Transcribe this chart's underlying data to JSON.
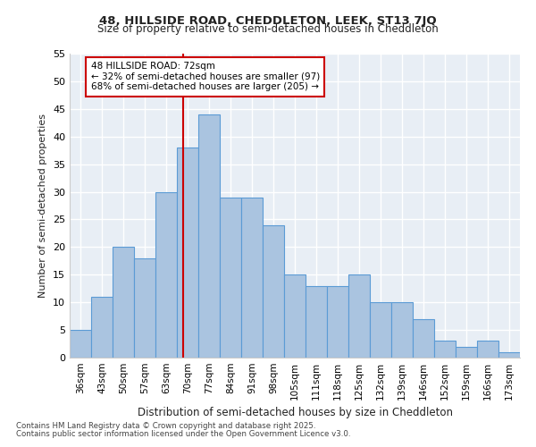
{
  "title1": "48, HILLSIDE ROAD, CHEDDLETON, LEEK, ST13 7JQ",
  "title2": "Size of property relative to semi-detached houses in Cheddleton",
  "xlabel": "Distribution of semi-detached houses by size in Cheddleton",
  "ylabel": "Number of semi-detached properties",
  "categories": [
    "36sqm",
    "43sqm",
    "50sqm",
    "57sqm",
    "63sqm",
    "70sqm",
    "77sqm",
    "84sqm",
    "91sqm",
    "98sqm",
    "105sqm",
    "111sqm",
    "118sqm",
    "125sqm",
    "132sqm",
    "139sqm",
    "146sqm",
    "152sqm",
    "159sqm",
    "166sqm",
    "173sqm"
  ],
  "values": [
    5,
    11,
    20,
    18,
    30,
    38,
    44,
    29,
    29,
    24,
    15,
    13,
    13,
    15,
    10,
    10,
    7,
    3,
    2,
    3,
    1
  ],
  "bar_color": "#aac4e0",
  "bar_edge_color": "#5b9bd5",
  "vline_color": "#cc0000",
  "ylim": [
    0,
    55
  ],
  "yticks": [
    0,
    5,
    10,
    15,
    20,
    25,
    30,
    35,
    40,
    45,
    50,
    55
  ],
  "footer1": "Contains HM Land Registry data © Crown copyright and database right 2025.",
  "footer2": "Contains public sector information licensed under the Open Government Licence v3.0.",
  "bg_color": "#e8eef5",
  "grid_color": "#ffffff",
  "font_color": "#222222",
  "ann_line1": "48 HILLSIDE ROAD: 72sqm",
  "ann_line2": "← 32% of semi-detached houses are smaller (97)",
  "ann_line3": "68% of semi-detached houses are larger (205) →"
}
